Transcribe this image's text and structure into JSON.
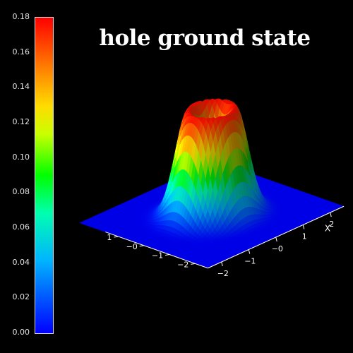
{
  "chart_data": {
    "type": "surface3d",
    "title": "hole ground state",
    "xlabel": "X",
    "ylabel": "",
    "x_ticks": [
      "−2",
      "−1",
      "−0",
      "1",
      "2"
    ],
    "y_ticks": [
      "−2",
      "−1",
      "−0",
      "1"
    ],
    "xlim": [
      -2.5,
      2.5
    ],
    "ylim": [
      -2.5,
      2.5
    ],
    "function": "ring-shaped density (hole ground state): max near radius 0.6, central dip",
    "colorbar": {
      "min": 0.0,
      "max": 0.18,
      "ticks": [
        "0.00",
        "0.02",
        "0.04",
        "0.06",
        "0.08",
        "0.10",
        "0.12",
        "0.14",
        "0.16",
        "0.18"
      ]
    }
  },
  "colors": {
    "background": "#000000",
    "text": "#ffffff",
    "base_plane": "#0000ff"
  }
}
